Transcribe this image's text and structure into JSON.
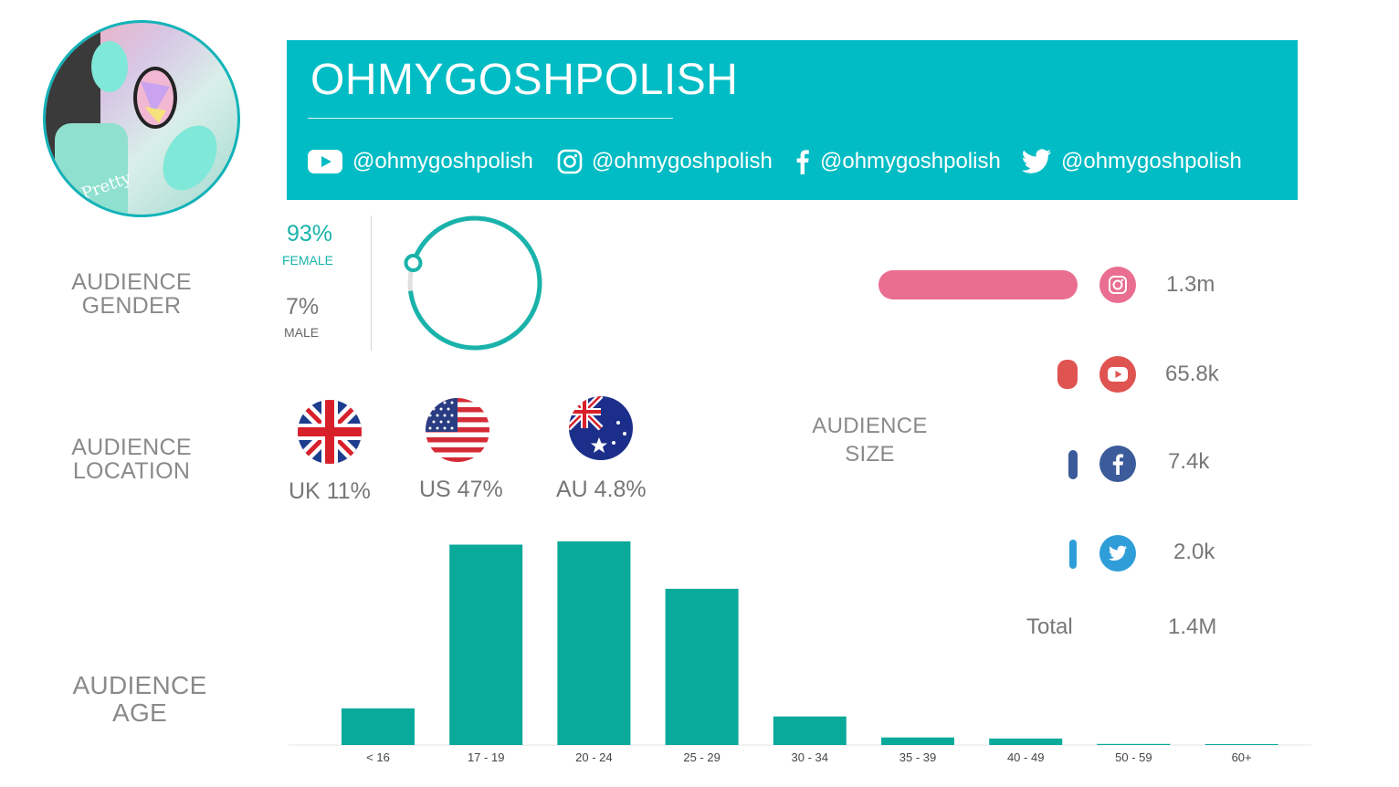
{
  "profile": {
    "name": "OHMYGOSHPOLISH",
    "handles": {
      "youtube": "@ohmygoshpolish",
      "instagram": "@ohmygoshpolish",
      "facebook": "@ohmygoshpolish",
      "twitter": "@ohmygoshpolish"
    }
  },
  "colors": {
    "teal": "#01bcc4",
    "chart_teal": "#0aaa9a",
    "instagram": "#e96e90",
    "youtube": "#df5350",
    "facebook": "#3b5b9a",
    "twitter": "#2f9ed8"
  },
  "sections": {
    "gender": "AUDIENCE GENDER",
    "location": "AUDIENCE LOCATION",
    "age": "AUDIENCE AGE",
    "size": "AUDIENCE SIZE"
  },
  "gender": {
    "female_pct": "93%",
    "female_label": "FEMALE",
    "male_pct": "7%",
    "male_label": "MALE",
    "female_share": 0.93
  },
  "location": [
    {
      "flag": "uk-flag",
      "label": "UK 11%"
    },
    {
      "flag": "us-flag",
      "label": "US 47%"
    },
    {
      "flag": "au-flag",
      "label": "AU 4.8%"
    }
  ],
  "audience_size": {
    "platforms": [
      {
        "name": "instagram",
        "icon": "instagram-icon",
        "value": "1.3m",
        "count": 1300000
      },
      {
        "name": "youtube",
        "icon": "youtube-icon",
        "value": "65.8k",
        "count": 65800
      },
      {
        "name": "facebook",
        "icon": "facebook-icon",
        "value": "7.4k",
        "count": 7400
      },
      {
        "name": "twitter",
        "icon": "twitter-icon",
        "value": "2.0k",
        "count": 2000
      }
    ],
    "total_label": "Total",
    "total_value": "1.4M"
  },
  "chart_data": {
    "type": "bar",
    "categories": [
      "< 16",
      "17 - 19",
      "20 - 24",
      "25 - 29",
      "30 - 34",
      "35 - 39",
      "40 - 49",
      "50 - 59",
      "60+"
    ],
    "values": [
      6.8,
      37.2,
      37.8,
      29.0,
      5.3,
      1.4,
      1.2,
      0.2,
      0.05
    ],
    "title": "",
    "xlabel": "",
    "ylabel": "",
    "ylim": [
      0,
      40
    ],
    "grid": false
  }
}
